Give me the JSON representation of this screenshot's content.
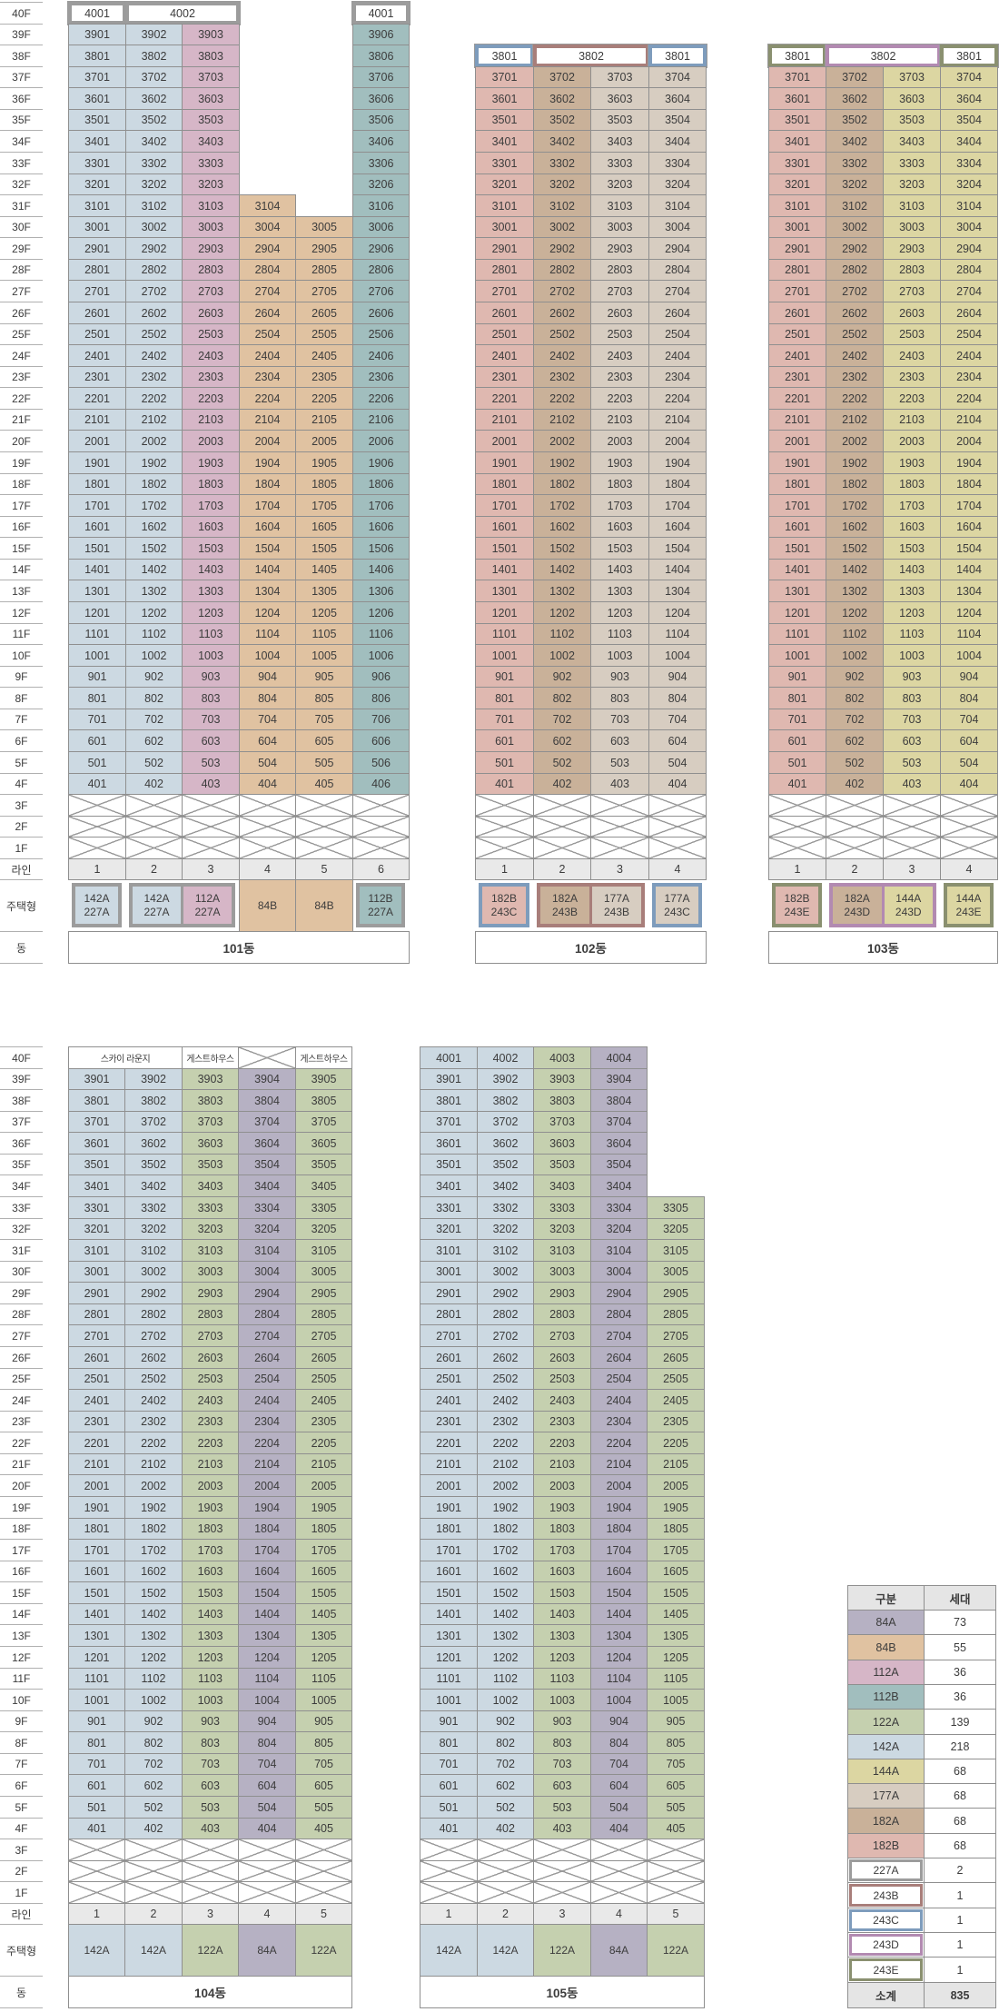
{
  "axis": {
    "floors": [
      "40F",
      "39F",
      "38F",
      "37F",
      "36F",
      "35F",
      "34F",
      "33F",
      "32F",
      "31F",
      "30F",
      "29F",
      "28F",
      "27F",
      "26F",
      "25F",
      "24F",
      "23F",
      "22F",
      "21F",
      "20F",
      "19F",
      "18F",
      "17F",
      "16F",
      "15F",
      "14F",
      "13F",
      "12F",
      "11F",
      "10F",
      "9F",
      "8F",
      "7F",
      "6F",
      "5F",
      "4F",
      "3F",
      "2F",
      "1F"
    ],
    "line_label": "라인",
    "type_label": "주택형",
    "building_label": "동"
  },
  "numbering_rule": "unit number = floor*100 + line",
  "colors": {
    "fill": {
      "142A": "#ccd9e2",
      "112A": "#d6b6c7",
      "84B": "#e0c2a1",
      "112B": "#a1bebe",
      "84A": "#b6b1c3",
      "122A": "#c5d0af",
      "144A": "#dcd6a2",
      "177A": "#d7cdc1",
      "182A": "#c9b199",
      "182B": "#dfb8b0"
    },
    "frame": {
      "227A": "#9c9c9c",
      "243B": "#a87e7a",
      "243C": "#7e9cbc",
      "243D": "#b28ab1",
      "243E": "#8a9070"
    },
    "line_row_bg": "#e9e9e9",
    "summary_header_bg": "#e5e5e5",
    "grid_line": "#8f8f8f"
  },
  "buildings": [
    {
      "name": "101동",
      "section": 1,
      "lines": [
        "1",
        "2",
        "3",
        "4",
        "5",
        "6"
      ],
      "columns": [
        {
          "line": 1,
          "type": "142A",
          "top_floor": 39
        },
        {
          "line": 2,
          "type": "142A",
          "top_floor": 39
        },
        {
          "line": 3,
          "type": "112A",
          "top_floor": 39
        },
        {
          "line": 4,
          "type": "84B",
          "top_floor": 31
        },
        {
          "line": 5,
          "type": "84B",
          "top_floor": 30
        },
        {
          "line": 6,
          "type": "112B",
          "top_floor": 39
        }
      ],
      "special_cells": [
        {
          "floor": 40,
          "col": 0,
          "span": 1,
          "label": "4001",
          "style": "pent",
          "frame": "227A"
        },
        {
          "floor": 40,
          "col": 1,
          "span": 2,
          "label": "4002",
          "style": "pent",
          "frame": "227A"
        },
        {
          "floor": 40,
          "col": 5,
          "span": 1,
          "label": "4001",
          "style": "pent",
          "frame": "227A"
        }
      ],
      "type_cells": [
        {
          "cols": [
            0
          ],
          "frame": "227A",
          "labels": [
            [
              "142A",
              "227A"
            ]
          ]
        },
        {
          "cols": [
            1,
            2
          ],
          "frame": "227A",
          "labels": [
            [
              "142A",
              "227A"
            ],
            [
              "112A",
              "227A"
            ]
          ]
        },
        {
          "cols": [
            3
          ],
          "labels": [
            [
              "84B"
            ]
          ]
        },
        {
          "cols": [
            4
          ],
          "labels": [
            [
              "84B"
            ]
          ]
        },
        {
          "cols": [
            5
          ],
          "frame": "227A",
          "labels": [
            [
              "112B",
              "227A"
            ]
          ]
        }
      ]
    },
    {
      "name": "102동",
      "section": 1,
      "lines": [
        "1",
        "2",
        "3",
        "4"
      ],
      "columns": [
        {
          "line": 1,
          "type": "182B",
          "top_floor": 37
        },
        {
          "line": 2,
          "type": "182A",
          "top_floor": 37
        },
        {
          "line": 3,
          "type": "177A",
          "top_floor": 37
        },
        {
          "line": 4,
          "type": "177A",
          "top_floor": 37
        }
      ],
      "special_cells": [
        {
          "floor": 38,
          "col": 0,
          "span": 1,
          "label": "3801",
          "style": "pent",
          "frame": "243C"
        },
        {
          "floor": 38,
          "col": 1,
          "span": 2,
          "label": "3802",
          "style": "pent",
          "frame": "243B"
        },
        {
          "floor": 38,
          "col": 3,
          "span": 1,
          "label": "3801",
          "style": "pent",
          "frame": "243C"
        }
      ],
      "type_cells": [
        {
          "cols": [
            0
          ],
          "frame": "243C",
          "labels": [
            [
              "182B",
              "243C"
            ]
          ]
        },
        {
          "cols": [
            1,
            2
          ],
          "frame": "243B",
          "labels": [
            [
              "182A",
              "243B"
            ],
            [
              "177A",
              "243B"
            ]
          ]
        },
        {
          "cols": [
            3
          ],
          "frame": "243C",
          "labels": [
            [
              "177A",
              "243C"
            ]
          ]
        }
      ]
    },
    {
      "name": "103동",
      "section": 1,
      "lines": [
        "1",
        "2",
        "3",
        "4"
      ],
      "columns": [
        {
          "line": 1,
          "type": "182B",
          "top_floor": 37
        },
        {
          "line": 2,
          "type": "182A",
          "top_floor": 37
        },
        {
          "line": 3,
          "type": "144A",
          "top_floor": 37
        },
        {
          "line": 4,
          "type": "144A",
          "top_floor": 37
        }
      ],
      "special_cells": [
        {
          "floor": 38,
          "col": 0,
          "span": 1,
          "label": "3801",
          "style": "pent",
          "frame": "243E"
        },
        {
          "floor": 38,
          "col": 1,
          "span": 2,
          "label": "3802",
          "style": "pent",
          "frame": "243D"
        },
        {
          "floor": 38,
          "col": 3,
          "span": 1,
          "label": "3801",
          "style": "pent",
          "frame": "243E"
        }
      ],
      "type_cells": [
        {
          "cols": [
            0
          ],
          "frame": "243E",
          "labels": [
            [
              "182B",
              "243E"
            ]
          ]
        },
        {
          "cols": [
            1,
            2
          ],
          "frame": "243D",
          "labels": [
            [
              "182A",
              "243D"
            ],
            [
              "144A",
              "243D"
            ]
          ]
        },
        {
          "cols": [
            3
          ],
          "frame": "243E",
          "labels": [
            [
              "144A",
              "243E"
            ]
          ]
        }
      ]
    },
    {
      "name": "104동",
      "section": 2,
      "lines": [
        "1",
        "2",
        "3",
        "4",
        "5"
      ],
      "columns": [
        {
          "line": 1,
          "type": "142A",
          "top_floor": 39
        },
        {
          "line": 2,
          "type": "142A",
          "top_floor": 39
        },
        {
          "line": 3,
          "type": "122A",
          "top_floor": 39
        },
        {
          "line": 4,
          "type": "84A",
          "top_floor": 39
        },
        {
          "line": 5,
          "type": "122A",
          "top_floor": 39
        }
      ],
      "special_cells": [
        {
          "floor": 40,
          "col": 0,
          "span": 2,
          "label": "스카이 라운지",
          "style": "amenity"
        },
        {
          "floor": 40,
          "col": 2,
          "span": 1,
          "label": "게스트하우스",
          "style": "amenity"
        },
        {
          "floor": 40,
          "col": 3,
          "span": 1,
          "label": "",
          "style": "x"
        },
        {
          "floor": 40,
          "col": 4,
          "span": 1,
          "label": "게스트하우스",
          "style": "amenity"
        }
      ],
      "type_cells": [
        {
          "cols": [
            0
          ],
          "labels": [
            [
              "142A"
            ]
          ]
        },
        {
          "cols": [
            1
          ],
          "labels": [
            [
              "142A"
            ]
          ]
        },
        {
          "cols": [
            2
          ],
          "labels": [
            [
              "122A"
            ]
          ]
        },
        {
          "cols": [
            3
          ],
          "labels": [
            [
              "84A"
            ]
          ]
        },
        {
          "cols": [
            4
          ],
          "labels": [
            [
              "122A"
            ]
          ]
        }
      ]
    },
    {
      "name": "105동",
      "section": 2,
      "lines": [
        "1",
        "2",
        "3",
        "4",
        "5"
      ],
      "columns": [
        {
          "line": 1,
          "type": "142A",
          "top_floor": 40
        },
        {
          "line": 2,
          "type": "142A",
          "top_floor": 40
        },
        {
          "line": 3,
          "type": "122A",
          "top_floor": 40
        },
        {
          "line": 4,
          "type": "84A",
          "top_floor": 40
        },
        {
          "line": 5,
          "type": "122A",
          "top_floor": 33
        }
      ],
      "special_cells": [],
      "type_cells": [
        {
          "cols": [
            0
          ],
          "labels": [
            [
              "142A"
            ]
          ]
        },
        {
          "cols": [
            1
          ],
          "labels": [
            [
              "142A"
            ]
          ]
        },
        {
          "cols": [
            2
          ],
          "labels": [
            [
              "122A"
            ]
          ]
        },
        {
          "cols": [
            3
          ],
          "labels": [
            [
              "84A"
            ]
          ]
        },
        {
          "cols": [
            4
          ],
          "labels": [
            [
              "122A"
            ]
          ]
        }
      ]
    }
  ],
  "summary": {
    "headers": [
      "구분",
      "세대"
    ],
    "rows": [
      {
        "type": "84A",
        "count": "73",
        "style": "fill"
      },
      {
        "type": "84B",
        "count": "55",
        "style": "fill"
      },
      {
        "type": "112A",
        "count": "36",
        "style": "fill"
      },
      {
        "type": "112B",
        "count": "36",
        "style": "fill"
      },
      {
        "type": "122A",
        "count": "139",
        "style": "fill"
      },
      {
        "type": "142A",
        "count": "218",
        "style": "fill"
      },
      {
        "type": "144A",
        "count": "68",
        "style": "fill"
      },
      {
        "type": "177A",
        "count": "68",
        "style": "fill"
      },
      {
        "type": "182A",
        "count": "68",
        "style": "fill"
      },
      {
        "type": "182B",
        "count": "68",
        "style": "fill"
      },
      {
        "type": "227A",
        "count": "2",
        "style": "outline"
      },
      {
        "type": "243B",
        "count": "1",
        "style": "outline"
      },
      {
        "type": "243C",
        "count": "1",
        "style": "outline"
      },
      {
        "type": "243D",
        "count": "1",
        "style": "outline"
      },
      {
        "type": "243E",
        "count": "1",
        "style": "outline"
      }
    ],
    "total_label": "소계",
    "total": "835"
  }
}
